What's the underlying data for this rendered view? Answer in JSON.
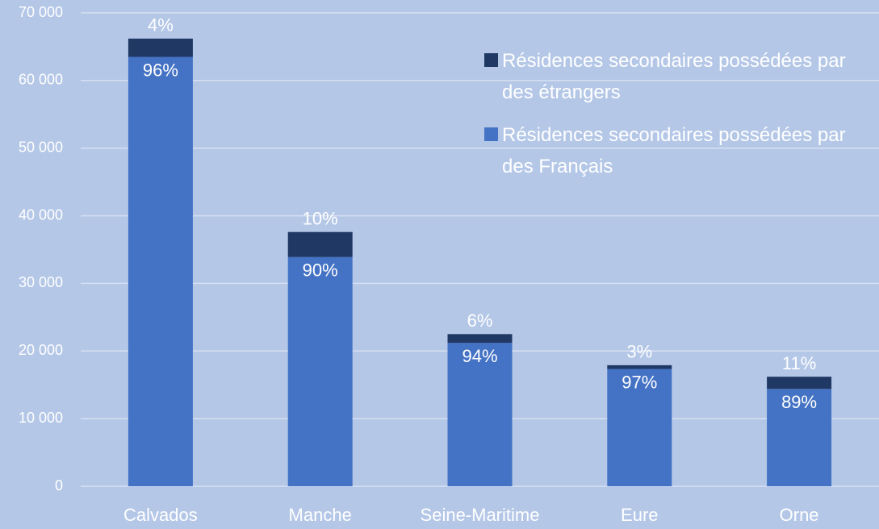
{
  "chart_data": {
    "type": "stacked_bar",
    "categories": [
      "Calvados",
      "Manche",
      "Seine-Maritime",
      "Eure",
      "Orne"
    ],
    "series": [
      {
        "name": "Résidences secondaires possédées par des Français",
        "color": "#4472c4",
        "values": [
          63500,
          33900,
          21200,
          17350,
          14400
        ],
        "share_labels": [
          "96%",
          "90%",
          "94%",
          "97%",
          "89%"
        ]
      },
      {
        "name": "Résidences secondaires possédées par des étrangers",
        "color": "#203864",
        "values": [
          2700,
          3700,
          1300,
          550,
          1800
        ],
        "share_labels": [
          "4%",
          "10%",
          "6%",
          "3%",
          "11%"
        ]
      }
    ],
    "ylim": [
      0,
      70000
    ],
    "yticks": [
      0,
      {
        "value": 10000,
        "label": "10 000"
      },
      {
        "value": 20000,
        "label": "20 000"
      },
      {
        "value": 30000,
        "label": "30 000"
      },
      {
        "value": 40000,
        "label": "40 000"
      },
      {
        "value": 50000,
        "label": "50 000"
      },
      {
        "value": 60000,
        "label": "60 000"
      },
      {
        "value": 70000,
        "label": "70 000"
      }
    ],
    "grid": true,
    "legend": "top-right"
  }
}
